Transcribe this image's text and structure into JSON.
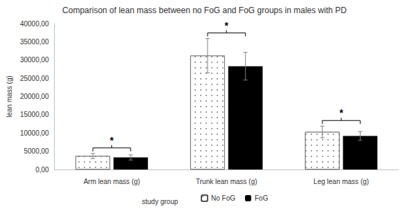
{
  "chart_data": {
    "type": "bar",
    "title": "Comparison of lean mass between no FoG and FoG groups in males with PD",
    "x_label": "study group",
    "y_label": "lean mass (g)",
    "categories": [
      "Arm lean mass (g)",
      "Trunk lean mass (g)",
      "Leg lean mass (g)"
    ],
    "series": [
      {
        "name": "No FoG",
        "color": "#ffffff",
        "values": [
          3700,
          31200,
          10300
        ],
        "errors": [
          700,
          4700,
          1600
        ]
      },
      {
        "name": "FoG",
        "color": "#000000",
        "values": [
          3300,
          28300,
          9200
        ],
        "errors": [
          700,
          3800,
          1200
        ]
      }
    ],
    "ylim": [
      0,
      40000
    ],
    "yticks": [
      {
        "value": 0,
        "label": "0,00"
      },
      {
        "value": 5000,
        "label": "5000,00"
      },
      {
        "value": 10000,
        "label": "10000,00"
      },
      {
        "value": 15000,
        "label": "15000,00"
      },
      {
        "value": 20000,
        "label": "20000,00"
      },
      {
        "value": 25000,
        "label": "25000,00"
      },
      {
        "value": 30000,
        "label": "30000,00"
      },
      {
        "value": 35000,
        "label": "35000,00"
      },
      {
        "value": 40000,
        "label": "40000,00"
      }
    ],
    "grid": false,
    "legend": "bottom",
    "annotations": [
      {
        "category": "Arm lean mass (g)",
        "text": "*"
      },
      {
        "category": "Trunk lean mass (g)",
        "text": "*"
      },
      {
        "category": "Leg lean mass (g)",
        "text": "*"
      }
    ]
  }
}
